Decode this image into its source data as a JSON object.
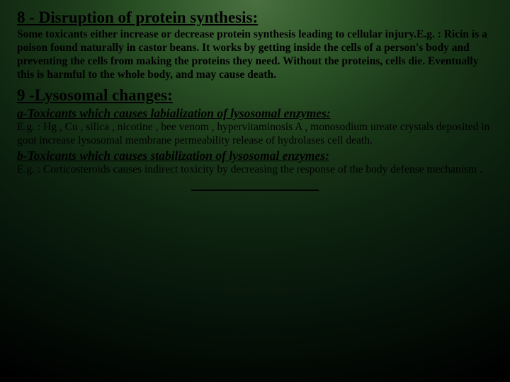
{
  "slide": {
    "background": {
      "gradient_center": "#4a7040",
      "gradient_edge": "#000000"
    },
    "title_fontsize": 23,
    "body_fontsize": 15.5,
    "sub_fontsize": 17.5,
    "font_family": "Times New Roman",
    "text_color": "#000000",
    "section8": {
      "heading": "8 - Disruption of protein synthesis:",
      "body": " Some toxicants either increase or decrease protein synthesis leading to cellular injury.E.g. : Ricin is a poison found naturally in castor beans. It works by getting inside the cells of a person's body and preventing the cells from making the proteins they need. Without the proteins, cells die. Eventually this is harmful to the whole body, and may cause death."
    },
    "section9": {
      "heading": "9 -Lysosomal changes:",
      "sub_a": "a-Toxicants which causes labialization of lysosomal enzymes:",
      "body_a": "E.g. : Hg , Cu , silica , nicotine , bee venom , hypervitaminosis A , monosodium ureate crystals deposited in gout  increase lysosomal membrane permeability       release of hydrolases     cell death.",
      "sub_b": "b-Toxicants which causes stabilization of lysosomal enzymes:",
      "body_b": "E.g. : Corticosteroids causes indirect toxicity by decreasing the response of the body defense mechanism ."
    }
  }
}
